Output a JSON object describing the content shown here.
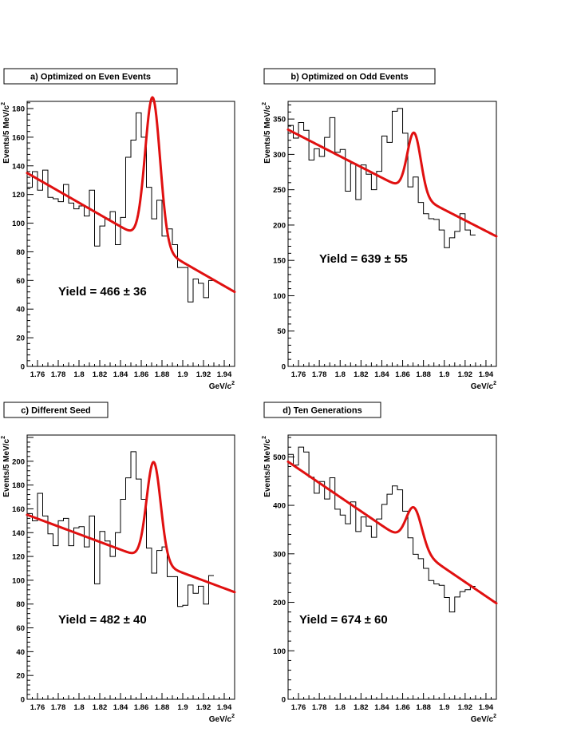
{
  "chart_data": [
    {
      "type": "histogram",
      "title": "a) Optimized on Even Events",
      "xlabel": "GeV/c",
      "xlabel_sup": "2",
      "ylabel": "Events/5 MeV/c",
      "ylabel_sup": "2",
      "xlim": [
        1.75,
        1.95
      ],
      "ylim": [
        0,
        185
      ],
      "xticks": [
        "1.76",
        "1.78",
        "1.8",
        "1.82",
        "1.84",
        "1.86",
        "1.88",
        "1.9",
        "1.92",
        "1.94"
      ],
      "yticks": [
        "0",
        "20",
        "40",
        "60",
        "80",
        "100",
        "120",
        "140",
        "160",
        "180"
      ],
      "annotation": "Yield = 466 ± 36",
      "bin_edges_start": 1.75,
      "bin_width": 0.005,
      "values": [
        125,
        136,
        123,
        137,
        118,
        117,
        115,
        127,
        114,
        110,
        112,
        105,
        123,
        84,
        98,
        103,
        108,
        85,
        104,
        146,
        158,
        177,
        160,
        125,
        103,
        116,
        91,
        96,
        85,
        69,
        69,
        45,
        61,
        58,
        48,
        60
      ],
      "fit": {
        "bkg_start": 135,
        "bkg_end": 52,
        "peak_mean": 1.871,
        "peak_sigma": 0.0072,
        "peak_height": 103
      }
    },
    {
      "type": "histogram",
      "title": "b) Optimized on Odd Events",
      "xlabel": "GeV/c",
      "xlabel_sup": "2",
      "ylabel": "Events/5 MeV/c",
      "ylabel_sup": "2",
      "xlim": [
        1.75,
        1.95
      ],
      "ylim": [
        0,
        375
      ],
      "xticks": [
        "1.76",
        "1.78",
        "1.8",
        "1.82",
        "1.84",
        "1.86",
        "1.88",
        "1.9",
        "1.92",
        "1.94"
      ],
      "yticks": [
        "0",
        "50",
        "100",
        "150",
        "200",
        "250",
        "300",
        "350"
      ],
      "annotation": "Yield = 639 ± 55",
      "bin_edges_start": 1.75,
      "bin_width": 0.005,
      "values": [
        341,
        323,
        345,
        334,
        292,
        308,
        297,
        324,
        352,
        303,
        307,
        248,
        287,
        236,
        285,
        272,
        250,
        276,
        326,
        317,
        361,
        365,
        330,
        254,
        268,
        232,
        216,
        209,
        208,
        193,
        168,
        182,
        191,
        216,
        193,
        186
      ],
      "fit": {
        "bkg_start": 335,
        "bkg_end": 184,
        "peak_mean": 1.871,
        "peak_sigma": 0.0065,
        "peak_height": 87
      }
    },
    {
      "type": "histogram",
      "title": "c) Different Seed",
      "xlabel": "GeV/c",
      "xlabel_sup": "2",
      "ylabel": "Events/5 MeV/c",
      "ylabel_sup": "2",
      "xlim": [
        1.75,
        1.95
      ],
      "ylim": [
        0,
        222
      ],
      "xticks": [
        "1.76",
        "1.78",
        "1.8",
        "1.82",
        "1.84",
        "1.86",
        "1.88",
        "1.9",
        "1.92",
        "1.94"
      ],
      "yticks": [
        "0",
        "20",
        "40",
        "60",
        "80",
        "100",
        "120",
        "140",
        "160",
        "180",
        "200"
      ],
      "annotation": "Yield = 482 ± 40",
      "bin_edges_start": 1.75,
      "bin_width": 0.005,
      "values": [
        156,
        150,
        173,
        154,
        139,
        129,
        150,
        152,
        129,
        144,
        145,
        128,
        154,
        97,
        141,
        133,
        120,
        140,
        168,
        186,
        208,
        185,
        168,
        127,
        106,
        125,
        128,
        103,
        103,
        78,
        79,
        96,
        89,
        95,
        80,
        104
      ],
      "fit": {
        "bkg_start": 155,
        "bkg_end": 90,
        "peak_mean": 1.872,
        "peak_sigma": 0.0068,
        "peak_height": 84
      }
    },
    {
      "type": "histogram",
      "title": "d) Ten Generations",
      "xlabel": "GeV/c",
      "xlabel_sup": "2",
      "ylabel": "Events/5 MeV/c",
      "ylabel_sup": "2",
      "xlim": [
        1.75,
        1.95
      ],
      "ylim": [
        0,
        545
      ],
      "xticks": [
        "1.76",
        "1.78",
        "1.8",
        "1.82",
        "1.84",
        "1.86",
        "1.88",
        "1.9",
        "1.92",
        "1.94"
      ],
      "yticks": [
        "0",
        "100",
        "200",
        "300",
        "400",
        "500"
      ],
      "annotation": "Yield = 674 ± 60",
      "bin_edges_start": 1.75,
      "bin_width": 0.005,
      "values": [
        505,
        483,
        520,
        510,
        458,
        425,
        449,
        413,
        457,
        392,
        380,
        362,
        407,
        346,
        376,
        357,
        334,
        372,
        402,
        423,
        440,
        432,
        388,
        333,
        299,
        290,
        270,
        245,
        238,
        235,
        210,
        180,
        211,
        222,
        226,
        233
      ],
      "fit": {
        "bkg_start": 490,
        "bkg_end": 198,
        "peak_mean": 1.871,
        "peak_sigma": 0.0075,
        "peak_height": 82
      }
    }
  ]
}
